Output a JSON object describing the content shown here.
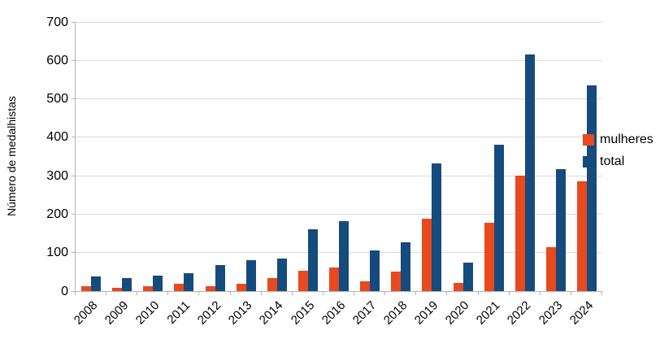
{
  "chart_data": {
    "type": "bar",
    "title": "",
    "xlabel": "",
    "ylabel": "Número de medalhistas",
    "categories": [
      "2008",
      "2009",
      "2010",
      "2011",
      "2012",
      "2013",
      "2014",
      "2015",
      "2016",
      "2017",
      "2018",
      "2019",
      "2020",
      "2021",
      "2022",
      "2023",
      "2024"
    ],
    "series": [
      {
        "name": "mulheres",
        "color": "#e8491e",
        "values": [
          13,
          9,
          13,
          20,
          13,
          20,
          34,
          53,
          62,
          26,
          50,
          188,
          21,
          178,
          300,
          115,
          286
        ]
      },
      {
        "name": "total",
        "color": "#164b7d",
        "values": [
          38,
          34,
          40,
          47,
          68,
          81,
          85,
          160,
          181,
          105,
          127,
          333,
          75,
          381,
          615,
          318,
          535
        ]
      }
    ],
    "ylim": [
      0,
      700
    ],
    "ytick_step": 100,
    "grid": true,
    "legend_position": "right"
  },
  "colors": {
    "background": "#ffffff",
    "axis": "#b3b3b3",
    "gridline": "#d9d9d9",
    "text": "#000000"
  }
}
